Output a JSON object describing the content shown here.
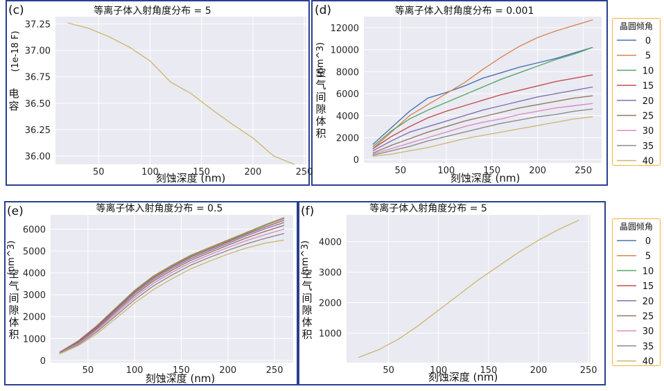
{
  "legend_title": "晶圆倾角",
  "chart_data": [
    {
      "panel": "(c)",
      "type": "line",
      "title": "等离子体入射角度分布  = 5",
      "xlabel": "刻蚀深度  (nm)",
      "ylabel": "电容",
      "y_unit": "(1e-18 F)",
      "xlim": [
        8,
        252
      ],
      "ylim": [
        35.92,
        37.32
      ],
      "xticks": [
        50,
        100,
        150,
        200,
        250
      ],
      "yticks": [
        36.0,
        36.25,
        36.5,
        36.75,
        37.0,
        37.25
      ],
      "ytick_labels": [
        "36.00",
        "36.25",
        "36.50",
        "36.75",
        "37.00",
        "37.25"
      ],
      "x": [
        20,
        40,
        60,
        80,
        100,
        120,
        140,
        160,
        180,
        200,
        220,
        240
      ],
      "series": [
        {
          "color": "#ccb974",
          "values": [
            37.26,
            37.21,
            37.13,
            37.03,
            36.9,
            36.7,
            36.59,
            36.44,
            36.3,
            36.17,
            36.0,
            35.92
          ]
        }
      ]
    },
    {
      "panel": "(d)",
      "type": "line",
      "title": "等离子体入射角度分布  = 0.001",
      "xlabel": "刻蚀深度  (nm)",
      "ylabel": "空气间隙体积",
      "y_unit": "(nm^3)",
      "xlim": [
        10,
        270
      ],
      "ylim": [
        -300,
        13000
      ],
      "xticks": [
        50,
        100,
        150,
        200,
        250
      ],
      "yticks": [
        0,
        2000,
        4000,
        6000,
        8000,
        10000,
        12000
      ],
      "legend": true,
      "x": [
        20,
        40,
        60,
        80,
        100,
        120,
        140,
        160,
        180,
        200,
        220,
        240,
        260
      ],
      "series": [
        {
          "name": "0",
          "color": "#4c72b0",
          "values": [
            1400,
            2900,
            4400,
            5600,
            6100,
            6700,
            7400,
            7900,
            8400,
            8800,
            9200,
            9700,
            10200
          ]
        },
        {
          "name": "5",
          "color": "#dd8452",
          "values": [
            1000,
            2500,
            4000,
            5000,
            6000,
            7000,
            8200,
            9300,
            10300,
            11100,
            11700,
            12200,
            12700
          ]
        },
        {
          "name": "10",
          "color": "#55a868",
          "values": [
            1200,
            2600,
            3700,
            4500,
            5200,
            5900,
            6600,
            7300,
            7900,
            8500,
            9100,
            9600,
            10200
          ]
        },
        {
          "name": "15",
          "color": "#c44e52",
          "values": [
            1000,
            2100,
            3000,
            3800,
            4400,
            4900,
            5400,
            5900,
            6300,
            6700,
            7100,
            7400,
            7700
          ]
        },
        {
          "name": "20",
          "color": "#8172b3",
          "values": [
            800,
            1700,
            2500,
            3000,
            3500,
            4000,
            4500,
            4900,
            5300,
            5700,
            6000,
            6300,
            6600
          ]
        },
        {
          "name": "25",
          "color": "#937860",
          "values": [
            600,
            1300,
            1900,
            2500,
            3000,
            3500,
            3900,
            4300,
            4700,
            5000,
            5300,
            5600,
            5800
          ]
        },
        {
          "name": "30",
          "color": "#da8bc3",
          "values": [
            500,
            1000,
            1500,
            2000,
            2500,
            3000,
            3400,
            3700,
            4100,
            4400,
            4700,
            4900,
            5100
          ]
        },
        {
          "name": "35",
          "color": "#8c8c8c",
          "values": [
            400,
            800,
            1200,
            1700,
            2100,
            2500,
            2900,
            3300,
            3600,
            3900,
            4100,
            4400,
            4600
          ]
        },
        {
          "name": "40",
          "color": "#ccb974",
          "values": [
            300,
            500,
            800,
            1100,
            1500,
            1900,
            2200,
            2500,
            2800,
            3100,
            3400,
            3700,
            3900
          ]
        }
      ]
    },
    {
      "panel": "(e)",
      "type": "line",
      "title": "等离子体入射角度分布  = 0.5",
      "xlabel": "刻蚀深度 (nm)",
      "ylabel": "空气间隙体积",
      "y_unit": "(nm^3)",
      "xlim": [
        10,
        270
      ],
      "ylim": [
        -100,
        6650
      ],
      "xticks": [
        50,
        100,
        150,
        200,
        250
      ],
      "yticks": [
        0,
        1000,
        2000,
        3000,
        4000,
        5000,
        6000
      ],
      "x": [
        20,
        40,
        60,
        80,
        100,
        120,
        140,
        160,
        180,
        200,
        220,
        240,
        260
      ],
      "series": [
        {
          "name": "0",
          "color": "#4c72b0",
          "values": [
            380,
            900,
            1600,
            2400,
            3200,
            3850,
            4350,
            4800,
            5150,
            5500,
            5850,
            6200,
            6520
          ]
        },
        {
          "name": "5",
          "color": "#dd8452",
          "values": [
            380,
            900,
            1600,
            2400,
            3200,
            3850,
            4350,
            4800,
            5150,
            5500,
            5850,
            6200,
            6520
          ]
        },
        {
          "name": "10",
          "color": "#55a868",
          "values": [
            370,
            880,
            1580,
            2380,
            3170,
            3820,
            4320,
            4770,
            5120,
            5470,
            5820,
            6170,
            6480
          ]
        },
        {
          "name": "15",
          "color": "#c44e52",
          "values": [
            360,
            860,
            1550,
            2340,
            3120,
            3770,
            4270,
            4720,
            5070,
            5420,
            5770,
            6100,
            6400
          ]
        },
        {
          "name": "20",
          "color": "#8172b3",
          "values": [
            350,
            830,
            1500,
            2280,
            3050,
            3700,
            4200,
            4650,
            5000,
            5350,
            5700,
            6020,
            6300
          ]
        },
        {
          "name": "25",
          "color": "#937860",
          "values": [
            340,
            800,
            1450,
            2210,
            2970,
            3620,
            4120,
            4570,
            4920,
            5270,
            5600,
            5900,
            6170
          ]
        },
        {
          "name": "30",
          "color": "#da8bc3",
          "values": [
            330,
            770,
            1390,
            2130,
            2880,
            3520,
            4020,
            4470,
            4820,
            5160,
            5480,
            5750,
            6000
          ]
        },
        {
          "name": "35",
          "color": "#8c8c8c",
          "values": [
            320,
            730,
            1320,
            2040,
            2770,
            3400,
            3900,
            4350,
            4700,
            5030,
            5330,
            5580,
            5800
          ]
        },
        {
          "name": "40",
          "color": "#ccb974",
          "values": [
            300,
            680,
            1230,
            1920,
            2620,
            3230,
            3730,
            4180,
            4530,
            4860,
            5140,
            5360,
            5500
          ]
        }
      ]
    },
    {
      "panel": "(f)",
      "type": "line",
      "title": "等离子体入射角度分布  = 5",
      "xlabel": "刻蚀深度 (nm)",
      "ylabel": "空气间隙体积",
      "y_unit": "(nm^3)",
      "xlim": [
        8,
        252
      ],
      "ylim": [
        30,
        4880
      ],
      "xticks": [
        50,
        100,
        150,
        200,
        250
      ],
      "yticks": [
        1000,
        2000,
        3000,
        4000
      ],
      "legend": true,
      "x": [
        20,
        40,
        60,
        80,
        100,
        120,
        140,
        160,
        180,
        200,
        220,
        240
      ],
      "series": [
        {
          "name": "40",
          "color": "#ccb974",
          "values": [
            200,
            450,
            800,
            1250,
            1750,
            2250,
            2750,
            3200,
            3650,
            4050,
            4400,
            4700
          ]
        }
      ]
    }
  ]
}
